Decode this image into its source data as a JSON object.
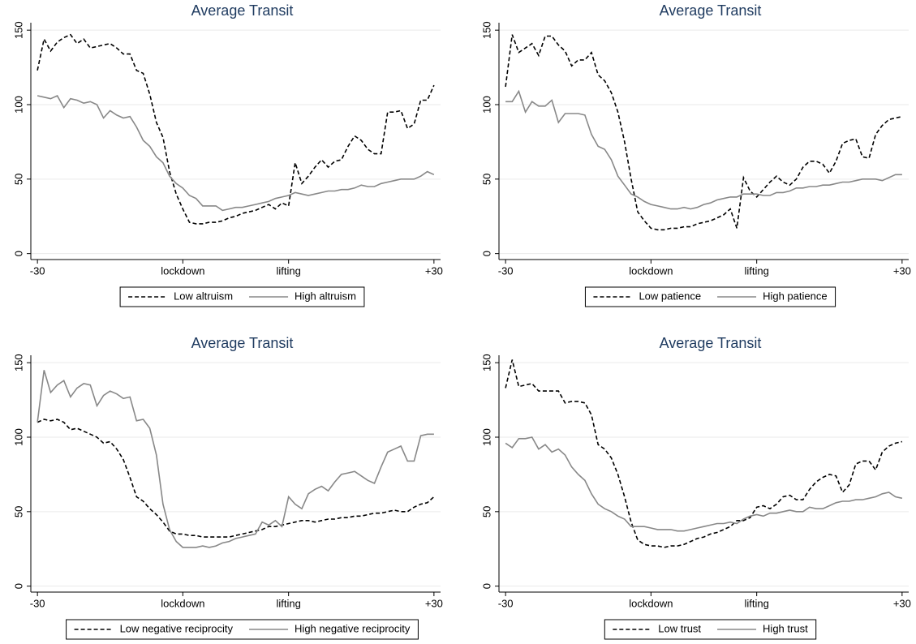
{
  "chart_data": [
    {
      "type": "line",
      "title": "Average Transit",
      "grid": true,
      "legend": "bottom",
      "x": [
        -30,
        -29,
        -28,
        -27,
        -26,
        -25,
        -24,
        -23,
        -22,
        -21,
        -20,
        -19,
        -18,
        -17,
        -16,
        -15,
        -14,
        -13,
        -12,
        -11,
        -10,
        -9,
        -8,
        -7,
        -6,
        -5,
        -4,
        -3,
        -2,
        -1,
        0,
        1,
        2,
        3,
        4,
        5,
        6,
        7,
        8,
        9,
        10,
        11,
        12,
        13,
        14,
        15,
        16,
        17,
        18,
        19,
        20,
        21,
        22,
        23,
        24,
        25,
        26,
        27,
        28,
        29,
        30
      ],
      "xlim": [
        -31,
        31
      ],
      "xticks": [
        -30,
        {
          "value": -8,
          "label": "lockdown"
        },
        {
          "value": 8,
          "label": "lifting"
        },
        {
          "value": 30,
          "label": "+30"
        }
      ],
      "ylim": [
        -4,
        155
      ],
      "yticks": [
        0,
        50,
        100,
        150
      ],
      "series": [
        {
          "name": "Low altruism",
          "color": "#000000",
          "dash": "dashed",
          "values": [
            123,
            144,
            136,
            142,
            145,
            147,
            141,
            144,
            138,
            139,
            140,
            141,
            138,
            134,
            134,
            123,
            121,
            107,
            88,
            78,
            55,
            40,
            30,
            21,
            20,
            20,
            21,
            21,
            22,
            24,
            25,
            27,
            28,
            29,
            31,
            33,
            30,
            34,
            32,
            61,
            47,
            52,
            58,
            63,
            58,
            62,
            63,
            72,
            79,
            76,
            70,
            67,
            67,
            95,
            95,
            96,
            84,
            87,
            103,
            103,
            113
          ]
        },
        {
          "name": "High altruism",
          "color": "#888888",
          "dash": "solid",
          "values": [
            106,
            105,
            104,
            106,
            98,
            104,
            103,
            101,
            102,
            100,
            91,
            96,
            93,
            91,
            92,
            85,
            76,
            72,
            65,
            61,
            52,
            47,
            44,
            39,
            37,
            32,
            32,
            32,
            29,
            30,
            31,
            31,
            32,
            33,
            34,
            35,
            37,
            38,
            39,
            41,
            40,
            39,
            40,
            41,
            42,
            42,
            43,
            43,
            44,
            46,
            45,
            45,
            47,
            48,
            49,
            50,
            50,
            50,
            52,
            55,
            53
          ]
        }
      ]
    },
    {
      "type": "line",
      "title": "Average Transit",
      "grid": true,
      "legend": "bottom",
      "x": [
        -30,
        -29,
        -28,
        -27,
        -26,
        -25,
        -24,
        -23,
        -22,
        -21,
        -20,
        -19,
        -18,
        -17,
        -16,
        -15,
        -14,
        -13,
        -12,
        -11,
        -10,
        -9,
        -8,
        -7,
        -6,
        -5,
        -4,
        -3,
        -2,
        -1,
        0,
        1,
        2,
        3,
        4,
        5,
        6,
        7,
        8,
        9,
        10,
        11,
        12,
        13,
        14,
        15,
        16,
        17,
        18,
        19,
        20,
        21,
        22,
        23,
        24,
        25,
        26,
        27,
        28,
        29,
        30
      ],
      "xlim": [
        -31,
        31
      ],
      "xticks": [
        -30,
        {
          "value": -8,
          "label": "lockdown"
        },
        {
          "value": 8,
          "label": "lifting"
        },
        {
          "value": 30,
          "label": "+30"
        }
      ],
      "ylim": [
        -4,
        155
      ],
      "yticks": [
        0,
        50,
        100,
        150
      ],
      "series": [
        {
          "name": "Low patience",
          "color": "#000000",
          "dash": "dashed",
          "values": [
            112,
            147,
            135,
            138,
            141,
            133,
            146,
            146,
            140,
            136,
            126,
            130,
            130,
            135,
            120,
            116,
            108,
            95,
            75,
            50,
            28,
            22,
            17,
            16,
            16,
            17,
            17,
            18,
            18,
            20,
            21,
            22,
            24,
            26,
            30,
            17,
            51,
            42,
            38,
            43,
            48,
            52,
            48,
            46,
            50,
            58,
            62,
            62,
            60,
            54,
            62,
            74,
            76,
            77,
            65,
            64,
            80,
            86,
            90,
            91,
            92
          ]
        },
        {
          "name": "High patience",
          "color": "#888888",
          "dash": "solid",
          "values": [
            102,
            102,
            109,
            95,
            102,
            99,
            99,
            103,
            88,
            94,
            94,
            94,
            93,
            80,
            72,
            70,
            63,
            52,
            46,
            40,
            38,
            35,
            33,
            32,
            31,
            30,
            30,
            31,
            30,
            31,
            33,
            34,
            36,
            37,
            38,
            38,
            40,
            40,
            40,
            39,
            39,
            41,
            41,
            42,
            44,
            44,
            45,
            45,
            46,
            46,
            47,
            48,
            48,
            49,
            50,
            50,
            50,
            49,
            51,
            53,
            53
          ]
        }
      ]
    },
    {
      "type": "line",
      "title": "Average Transit",
      "grid": true,
      "legend": "bottom",
      "x": [
        -30,
        -29,
        -28,
        -27,
        -26,
        -25,
        -24,
        -23,
        -22,
        -21,
        -20,
        -19,
        -18,
        -17,
        -16,
        -15,
        -14,
        -13,
        -12,
        -11,
        -10,
        -9,
        -8,
        -7,
        -6,
        -5,
        -4,
        -3,
        -2,
        -1,
        0,
        1,
        2,
        3,
        4,
        5,
        6,
        7,
        8,
        9,
        10,
        11,
        12,
        13,
        14,
        15,
        16,
        17,
        18,
        19,
        20,
        21,
        22,
        23,
        24,
        25,
        26,
        27,
        28,
        29,
        30
      ],
      "xlim": [
        -31,
        31
      ],
      "xticks": [
        -30,
        {
          "value": -8,
          "label": "lockdown"
        },
        {
          "value": 8,
          "label": "lifting"
        },
        {
          "value": 30,
          "label": "+30"
        }
      ],
      "ylim": [
        -4,
        155
      ],
      "yticks": [
        0,
        50,
        100,
        150
      ],
      "series": [
        {
          "name": "Low negative reciprocity",
          "color": "#000000",
          "dash": "dashed",
          "values": [
            110,
            112,
            111,
            112,
            110,
            105,
            106,
            104,
            102,
            100,
            96,
            97,
            92,
            85,
            73,
            60,
            57,
            52,
            48,
            43,
            37,
            35,
            35,
            34,
            34,
            33,
            33,
            33,
            33,
            33,
            34,
            35,
            36,
            37,
            38,
            40,
            40,
            41,
            42,
            43,
            44,
            44,
            43,
            44,
            45,
            45,
            46,
            46,
            47,
            47,
            48,
            49,
            49,
            50,
            51,
            50,
            50,
            53,
            55,
            56,
            60
          ]
        },
        {
          "name": "High negative reciprocity",
          "color": "#888888",
          "dash": "solid",
          "values": [
            110,
            145,
            130,
            135,
            138,
            127,
            133,
            136,
            135,
            121,
            128,
            131,
            129,
            126,
            127,
            111,
            112,
            106,
            88,
            55,
            38,
            30,
            26,
            26,
            26,
            27,
            26,
            27,
            29,
            30,
            32,
            33,
            34,
            35,
            43,
            41,
            44,
            40,
            60,
            55,
            52,
            62,
            65,
            67,
            64,
            70,
            75,
            76,
            77,
            74,
            71,
            69,
            80,
            90,
            92,
            94,
            84,
            84,
            101,
            102,
            102
          ]
        }
      ]
    },
    {
      "type": "line",
      "title": "Average Transit",
      "grid": true,
      "legend": "bottom",
      "x": [
        -30,
        -29,
        -28,
        -27,
        -26,
        -25,
        -24,
        -23,
        -22,
        -21,
        -20,
        -19,
        -18,
        -17,
        -16,
        -15,
        -14,
        -13,
        -12,
        -11,
        -10,
        -9,
        -8,
        -7,
        -6,
        -5,
        -4,
        -3,
        -2,
        -1,
        0,
        1,
        2,
        3,
        4,
        5,
        6,
        7,
        8,
        9,
        10,
        11,
        12,
        13,
        14,
        15,
        16,
        17,
        18,
        19,
        20,
        21,
        22,
        23,
        24,
        25,
        26,
        27,
        28,
        29,
        30
      ],
      "xlim": [
        -31,
        31
      ],
      "xticks": [
        -30,
        {
          "value": -8,
          "label": "lockdown"
        },
        {
          "value": 8,
          "label": "lifting"
        },
        {
          "value": 30,
          "label": "+30"
        }
      ],
      "ylim": [
        -4,
        155
      ],
      "yticks": [
        0,
        50,
        100,
        150
      ],
      "series": [
        {
          "name": "Low trust",
          "color": "#000000",
          "dash": "dashed",
          "values": [
            133,
            152,
            134,
            135,
            136,
            131,
            131,
            131,
            131,
            123,
            124,
            124,
            123,
            115,
            95,
            92,
            86,
            75,
            60,
            43,
            31,
            28,
            27,
            27,
            26,
            27,
            27,
            28,
            30,
            32,
            33,
            35,
            36,
            38,
            40,
            44,
            44,
            46,
            53,
            54,
            52,
            55,
            60,
            61,
            58,
            58,
            65,
            70,
            73,
            75,
            74,
            63,
            68,
            82,
            84,
            84,
            78,
            90,
            94,
            96,
            97
          ]
        },
        {
          "name": "High trust",
          "color": "#888888",
          "dash": "solid",
          "values": [
            96,
            93,
            99,
            99,
            100,
            92,
            95,
            90,
            92,
            88,
            80,
            75,
            71,
            62,
            55,
            52,
            50,
            47,
            45,
            40,
            40,
            40,
            39,
            38,
            38,
            38,
            37,
            37,
            38,
            39,
            40,
            41,
            42,
            42,
            43,
            42,
            45,
            47,
            48,
            47,
            49,
            49,
            50,
            51,
            50,
            50,
            53,
            52,
            52,
            54,
            56,
            57,
            57,
            58,
            58,
            59,
            60,
            62,
            63,
            60,
            59
          ]
        }
      ]
    }
  ]
}
